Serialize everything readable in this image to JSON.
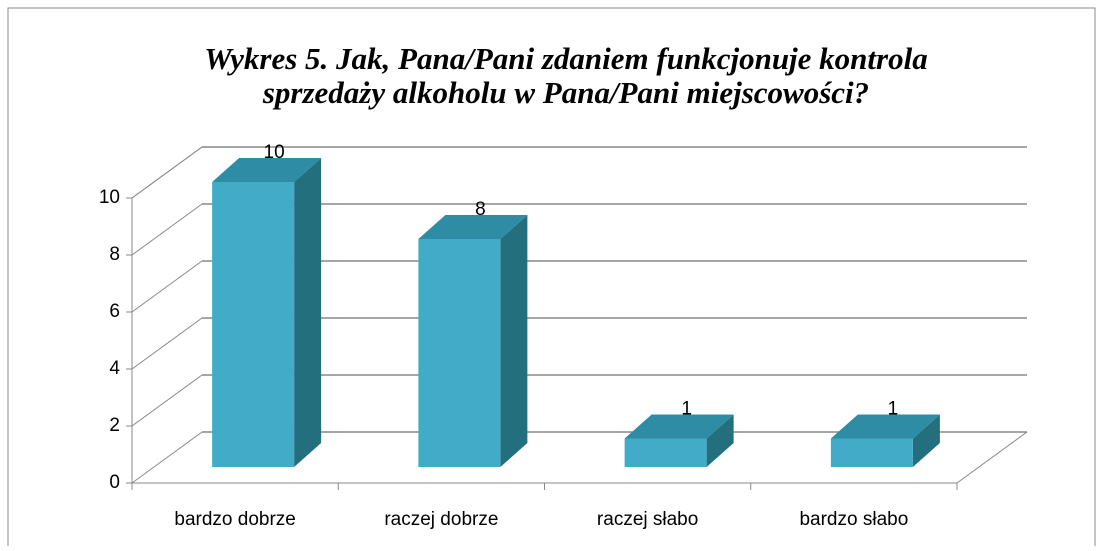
{
  "chart_data": {
    "type": "bar",
    "title": [
      "Wykres 5. Jak, Pana/Pani zdaniem funkcjonuje kontrola",
      "sprzedaży alkoholu w Pana/Pani miejscowości?"
    ],
    "categories": [
      "bardzo dobrze",
      "raczej dobrze",
      "raczej słabo",
      "bardzo słabo"
    ],
    "values": [
      10,
      8,
      1,
      1
    ],
    "color": "#41abc8",
    "ylim": [
      0,
      10
    ],
    "yticks": [
      0,
      2,
      4,
      6,
      8,
      10
    ],
    "grid": true
  }
}
